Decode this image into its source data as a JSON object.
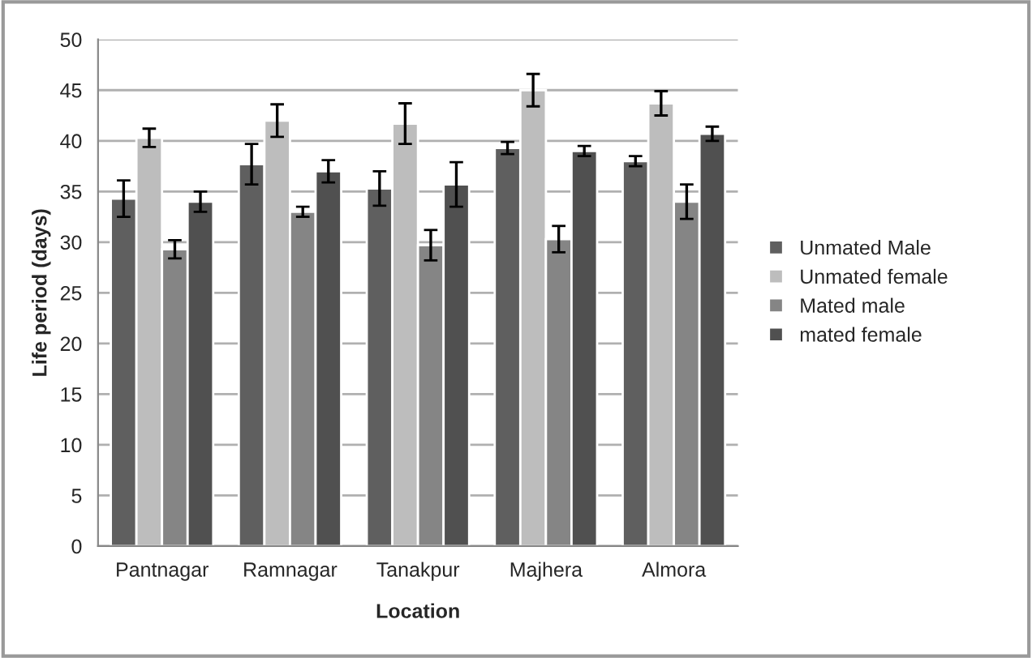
{
  "chart_data": {
    "type": "bar",
    "xlabel": "Location",
    "ylabel": "Life period (days)",
    "categories": [
      "Pantnagar",
      "Ramnagar",
      "Tanakpur",
      "Majhera",
      "Almora"
    ],
    "series": [
      {
        "name": "Unmated Male",
        "color": "#5f5f5f",
        "values": [
          34.3,
          37.7,
          35.3,
          39.3,
          38.0
        ],
        "errors": [
          1.8,
          2.0,
          1.7,
          0.6,
          0.5
        ]
      },
      {
        "name": "Unmated female",
        "color": "#bdbdbd",
        "values": [
          40.3,
          42.0,
          41.7,
          45.0,
          43.7
        ],
        "errors": [
          0.9,
          1.6,
          2.0,
          1.6,
          1.2
        ]
      },
      {
        "name": "Mated male",
        "color": "#858585",
        "values": [
          29.3,
          33.0,
          29.7,
          30.3,
          34.0
        ],
        "errors": [
          0.9,
          0.5,
          1.5,
          1.3,
          1.7
        ]
      },
      {
        "name": "mated female",
        "color": "#505050",
        "values": [
          34.0,
          37.0,
          35.7,
          39.0,
          40.7
        ],
        "errors": [
          1.0,
          1.1,
          2.2,
          0.5,
          0.7
        ]
      }
    ],
    "ylim": [
      0,
      50
    ],
    "yticks": [
      0,
      5,
      10,
      15,
      20,
      25,
      30,
      35,
      40,
      45,
      50
    ],
    "grid": "y",
    "legend": "right"
  }
}
